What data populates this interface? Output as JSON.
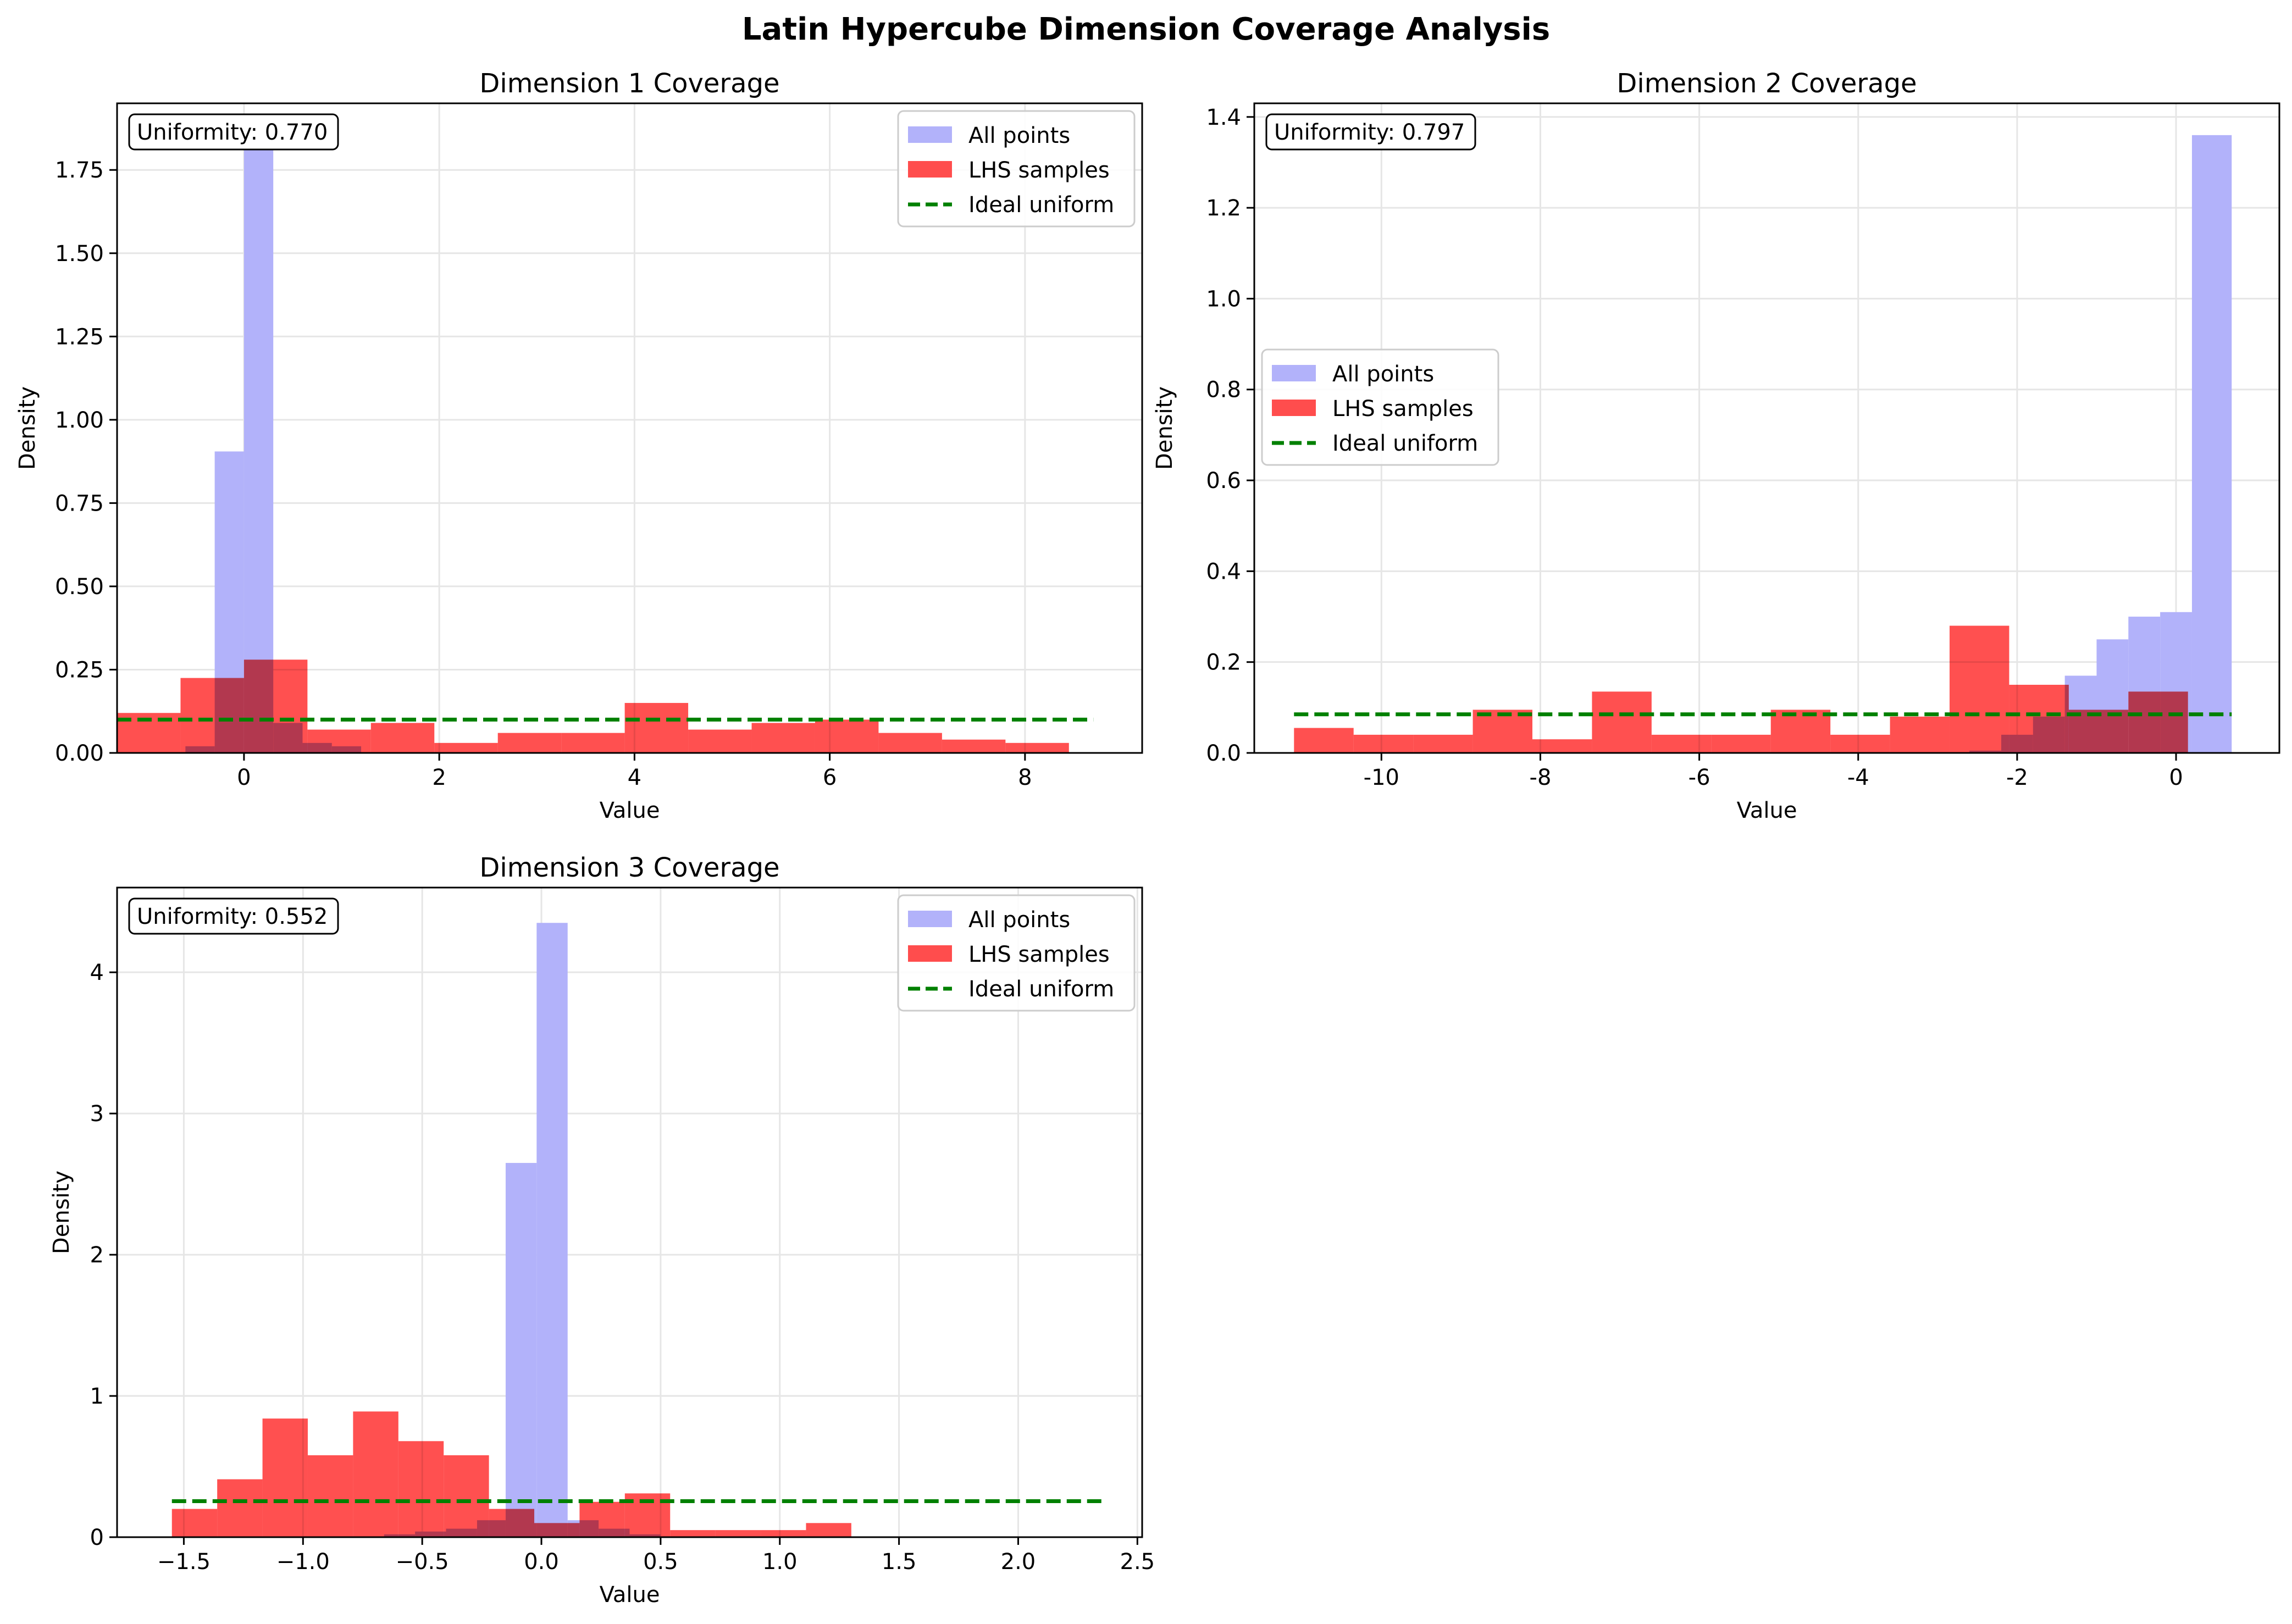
{
  "figure": {
    "title": "Latin Hypercube Dimension Coverage Analysis"
  },
  "colors": {
    "all_points": "#b2b2fa",
    "lhs_samples": "#ff4d4d",
    "ideal_uniform": "#008000",
    "grid": "#e6e6e6"
  },
  "chart_data": [
    {
      "type": "bar",
      "title": "Dimension 1 Coverage",
      "xlabel": "Value",
      "ylabel": "Density",
      "xlim": [
        -1.3,
        9.2
      ],
      "ylim": [
        0,
        1.95
      ],
      "xticks": [
        0,
        2,
        4,
        6,
        8
      ],
      "yticks": [
        0.0,
        0.25,
        0.5,
        0.75,
        1.0,
        1.25,
        1.5,
        1.75
      ],
      "ytick_format": 2,
      "legend_position": "top-right",
      "uniformity_text": "Uniformity: 0.770",
      "legend": [
        "All points",
        "LHS samples",
        "Ideal uniform"
      ],
      "all_points": {
        "name": "All points",
        "bins": [
          [
            -0.6,
            -0.3,
            0.02
          ],
          [
            -0.3,
            0.0,
            0.905
          ],
          [
            0.0,
            0.3,
            1.86
          ],
          [
            0.3,
            0.6,
            0.09
          ],
          [
            0.6,
            0.9,
            0.03
          ],
          [
            0.9,
            1.2,
            0.02
          ]
        ]
      },
      "lhs_samples": {
        "name": "LHS samples",
        "bins": [
          [
            -1.3,
            -0.65,
            0.12
          ],
          [
            -0.65,
            0.0,
            0.225
          ],
          [
            0.0,
            0.65,
            0.28
          ],
          [
            0.65,
            1.3,
            0.07
          ],
          [
            1.3,
            1.95,
            0.09
          ],
          [
            1.95,
            2.6,
            0.03
          ],
          [
            2.6,
            3.25,
            0.06
          ],
          [
            3.25,
            3.9,
            0.06
          ],
          [
            3.9,
            4.55,
            0.15
          ],
          [
            4.55,
            5.2,
            0.07
          ],
          [
            5.2,
            5.85,
            0.09
          ],
          [
            5.85,
            6.5,
            0.1
          ],
          [
            6.5,
            7.15,
            0.06
          ],
          [
            7.15,
            7.8,
            0.04
          ],
          [
            7.8,
            8.45,
            0.03
          ]
        ]
      },
      "ideal_uniform": {
        "name": "Ideal uniform",
        "x": [
          -1.3,
          8.7
        ],
        "y": 0.1
      }
    },
    {
      "type": "bar",
      "title": "Dimension 2 Coverage",
      "xlabel": "Value",
      "ylabel": "Density",
      "xlim": [
        -11.6,
        1.3
      ],
      "ylim": [
        0,
        1.43
      ],
      "xticks": [
        -10,
        -8,
        -6,
        -4,
        -2,
        0
      ],
      "yticks": [
        0.0,
        0.2,
        0.4,
        0.6,
        0.8,
        1.0,
        1.2,
        1.4
      ],
      "ytick_format": 1,
      "legend_position": "center-left",
      "uniformity_text": "Uniformity: 0.797",
      "legend": [
        "All points",
        "LHS samples",
        "Ideal uniform"
      ],
      "all_points": {
        "name": "All points",
        "bins": [
          [
            -2.6,
            -2.2,
            0.005
          ],
          [
            -2.2,
            -1.8,
            0.04
          ],
          [
            -1.8,
            -1.4,
            0.08
          ],
          [
            -1.4,
            -1.0,
            0.17
          ],
          [
            -1.0,
            -0.6,
            0.25
          ],
          [
            -0.6,
            -0.2,
            0.3
          ],
          [
            -0.2,
            0.2,
            0.31
          ],
          [
            0.2,
            0.7,
            1.36
          ]
        ]
      },
      "lhs_samples": {
        "name": "LHS samples",
        "bins": [
          [
            -11.1,
            -10.35,
            0.055
          ],
          [
            -10.35,
            -9.6,
            0.04
          ],
          [
            -9.6,
            -8.85,
            0.04
          ],
          [
            -8.85,
            -8.1,
            0.095
          ],
          [
            -8.1,
            -7.35,
            0.03
          ],
          [
            -7.35,
            -6.6,
            0.135
          ],
          [
            -6.6,
            -5.85,
            0.04
          ],
          [
            -5.85,
            -5.1,
            0.04
          ],
          [
            -5.1,
            -4.35,
            0.095
          ],
          [
            -4.35,
            -3.6,
            0.04
          ],
          [
            -3.6,
            -2.85,
            0.08
          ],
          [
            -2.85,
            -2.1,
            0.28
          ],
          [
            -2.1,
            -1.35,
            0.15
          ],
          [
            -1.35,
            -0.6,
            0.095
          ],
          [
            -0.6,
            0.15,
            0.135
          ]
        ]
      },
      "ideal_uniform": {
        "name": "Ideal uniform",
        "x": [
          -11.1,
          0.7
        ],
        "y": 0.085
      }
    },
    {
      "type": "bar",
      "title": "Dimension 3 Coverage",
      "xlabel": "Value",
      "ylabel": "Density",
      "xlim": [
        -1.78,
        2.52
      ],
      "ylim": [
        0,
        4.6
      ],
      "xticks": [
        -1.5,
        -1.0,
        -0.5,
        0.0,
        0.5,
        1.0,
        1.5,
        2.0,
        2.5
      ],
      "xtick_format": 1,
      "yticks": [
        0,
        1,
        2,
        3,
        4
      ],
      "ytick_format": 0,
      "legend_position": "top-right",
      "uniformity_text": "Uniformity: 0.552",
      "legend": [
        "All points",
        "LHS samples",
        "Ideal uniform"
      ],
      "all_points": {
        "name": "All points",
        "bins": [
          [
            -0.66,
            -0.53,
            0.02
          ],
          [
            -0.53,
            -0.4,
            0.04
          ],
          [
            -0.4,
            -0.27,
            0.06
          ],
          [
            -0.27,
            -0.15,
            0.12
          ],
          [
            -0.15,
            -0.02,
            2.65
          ],
          [
            -0.02,
            0.11,
            4.35
          ],
          [
            0.11,
            0.24,
            0.12
          ],
          [
            0.24,
            0.37,
            0.06
          ],
          [
            0.37,
            0.5,
            0.02
          ]
        ]
      },
      "lhs_samples": {
        "name": "LHS samples",
        "bins": [
          [
            -1.55,
            -1.36,
            0.2
          ],
          [
            -1.36,
            -1.17,
            0.41
          ],
          [
            -1.17,
            -0.98,
            0.84
          ],
          [
            -0.98,
            -0.79,
            0.58
          ],
          [
            -0.79,
            -0.6,
            0.89
          ],
          [
            -0.6,
            -0.41,
            0.68
          ],
          [
            -0.41,
            -0.22,
            0.58
          ],
          [
            -0.22,
            -0.03,
            0.2
          ],
          [
            -0.03,
            0.16,
            0.1
          ],
          [
            0.16,
            0.35,
            0.25
          ],
          [
            0.35,
            0.54,
            0.31
          ],
          [
            0.54,
            0.73,
            0.05
          ],
          [
            0.73,
            0.92,
            0.05
          ],
          [
            0.92,
            1.11,
            0.05
          ],
          [
            1.11,
            1.3,
            0.1
          ]
        ]
      },
      "ideal_uniform": {
        "name": "Ideal uniform",
        "x": [
          -1.55,
          2.35
        ],
        "y": 0.255
      }
    }
  ]
}
